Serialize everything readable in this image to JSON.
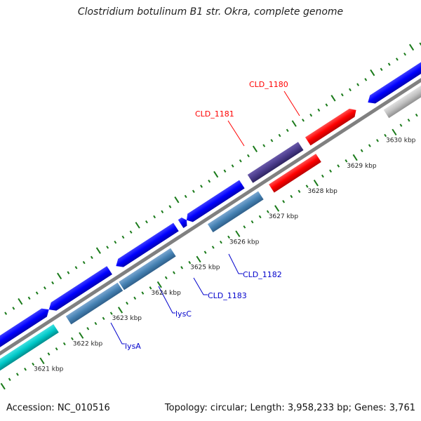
{
  "title": "Clostridium botulinum B1 str. Okra, complete genome",
  "footer": {
    "accession": "Accession: NC_010516",
    "summary": "Topology: circular; Length: 3,958,233 bp; Genes: 3,761"
  },
  "colors": {
    "forward_gene": "#0000ff",
    "reverse_gene": "#4682b4",
    "highlight_gene": "#ff0000",
    "rna_gene": "#00c8c8",
    "selected_gene": "#4b3c8c",
    "other_gene": "#c0c0c0",
    "backbone": "#808080",
    "ticks": "#1a7a1a",
    "label_red": "#ff0000",
    "label_blue": "#0000cc"
  },
  "scale_ticks": [
    "3621 kbp",
    "3622 kbp",
    "3623 kbp",
    "3624 kbp",
    "3625 kbp",
    "3626 kbp",
    "3627 kbp",
    "3628 kbp",
    "3629 kbp",
    "3630 kbp"
  ],
  "gene_labels": [
    {
      "text": "CLD_1180",
      "color": "red"
    },
    {
      "text": "CLD_1181",
      "color": "red"
    },
    {
      "text": "CLD_1182",
      "color": "blue"
    },
    {
      "text": "CLD_1183",
      "color": "blue"
    },
    {
      "text": "lysC",
      "color": "blue"
    },
    {
      "text": "lysA",
      "color": "blue"
    }
  ]
}
